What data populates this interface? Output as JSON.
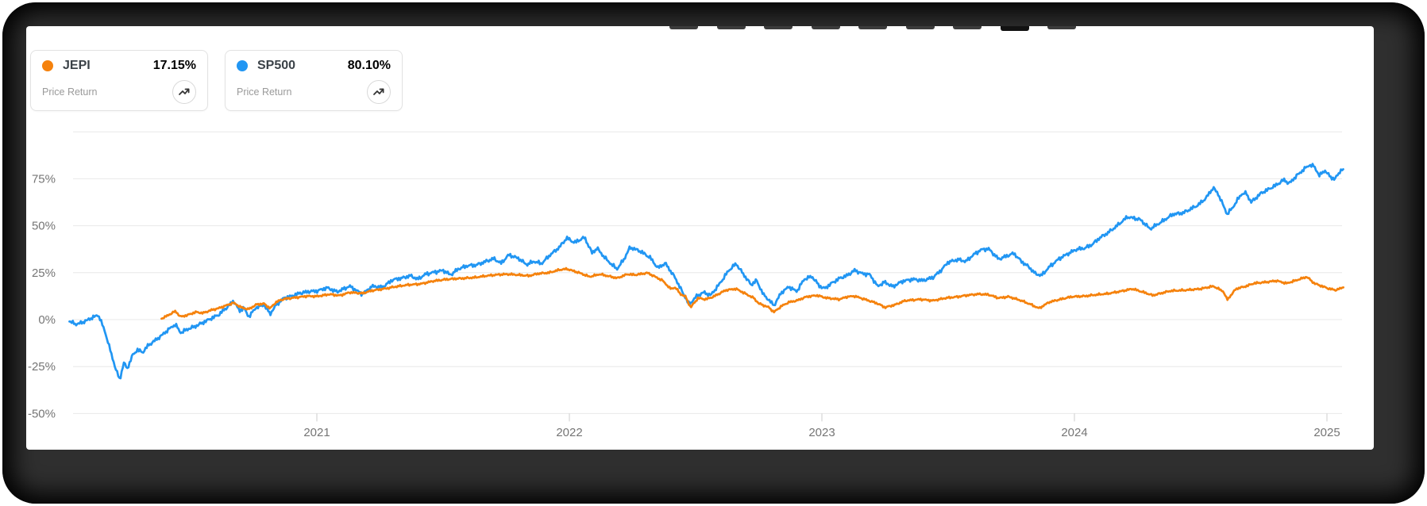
{
  "page": {
    "background": "#ffffff",
    "frame_color": "#2f2f2f",
    "panel_color": "#ffffff"
  },
  "toolbar": {
    "partial_tab_count": 9,
    "active_tab_index": 7
  },
  "legend": [
    {
      "ticker": "JEPI",
      "value": "17.15%",
      "metric": "Price Return",
      "color": "#f5820d",
      "icon": "trend-up-icon"
    },
    {
      "ticker": "SP500",
      "value": "80.10%",
      "metric": "Price Return",
      "color": "#2196f3",
      "icon": "trend-up-icon"
    }
  ],
  "chart_data": {
    "type": "line",
    "title": "",
    "xlabel": "",
    "ylabel": "",
    "grid": true,
    "legend_position": "top-left",
    "x_axis": {
      "labels": [
        "2021",
        "2022",
        "2023",
        "2024",
        "2025"
      ],
      "values": [
        1,
        2,
        3,
        4,
        5
      ],
      "unit": "years-since-2020",
      "range": [
        0.0,
        5.08
      ]
    },
    "y_axis": {
      "labels": [
        "75%",
        "50%",
        "25%",
        "0%",
        "-25%",
        "-50%"
      ],
      "values": [
        75,
        50,
        25,
        0,
        -25,
        -50
      ],
      "gridline_values": [
        100,
        75,
        50,
        25,
        0,
        -25,
        -50
      ],
      "unit": "percent",
      "ylim": [
        -50,
        100
      ]
    },
    "series": [
      {
        "name": "JEPI",
        "metric": "Price Return",
        "color": "#f5820d",
        "final_value_pct": 17.15,
        "points": [
          [
            0.385,
            0.5
          ],
          [
            0.4,
            1.5
          ],
          [
            0.42,
            3
          ],
          [
            0.44,
            4.5
          ],
          [
            0.46,
            1.5
          ],
          [
            0.49,
            2.5
          ],
          [
            0.52,
            4
          ],
          [
            0.55,
            3.5
          ],
          [
            0.58,
            5
          ],
          [
            0.61,
            6
          ],
          [
            0.64,
            7.5
          ],
          [
            0.67,
            9
          ],
          [
            0.7,
            6.5
          ],
          [
            0.73,
            5.5
          ],
          [
            0.76,
            8
          ],
          [
            0.79,
            8.5
          ],
          [
            0.815,
            6
          ],
          [
            0.84,
            9.5
          ],
          [
            0.87,
            11
          ],
          [
            0.9,
            11.5
          ],
          [
            0.93,
            12
          ],
          [
            0.96,
            12.5
          ],
          [
            1.0,
            12.4
          ],
          [
            1.05,
            13.5
          ],
          [
            1.09,
            12.8
          ],
          [
            1.13,
            14.5
          ],
          [
            1.18,
            14
          ],
          [
            1.22,
            15.5
          ],
          [
            1.27,
            16.5
          ],
          [
            1.31,
            17.5
          ],
          [
            1.36,
            18.5
          ],
          [
            1.41,
            19
          ],
          [
            1.46,
            20.5
          ],
          [
            1.51,
            21.4
          ],
          [
            1.55,
            21.8
          ],
          [
            1.59,
            22.1
          ],
          [
            1.63,
            22.5
          ],
          [
            1.67,
            23.3
          ],
          [
            1.72,
            24
          ],
          [
            1.76,
            24.2
          ],
          [
            1.8,
            23.8
          ],
          [
            1.84,
            23.3
          ],
          [
            1.875,
            24.5
          ],
          [
            1.92,
            25
          ],
          [
            1.96,
            26.5
          ],
          [
            1.99,
            27
          ],
          [
            2.04,
            24.9
          ],
          [
            2.08,
            22.8
          ],
          [
            2.12,
            24.2
          ],
          [
            2.19,
            22.1
          ],
          [
            2.23,
            24.2
          ],
          [
            2.26,
            23.8
          ],
          [
            2.31,
            24.9
          ],
          [
            2.34,
            22.8
          ],
          [
            2.37,
            20.7
          ],
          [
            2.4,
            16.4
          ],
          [
            2.42,
            17.1
          ],
          [
            2.44,
            13.6
          ],
          [
            2.46,
            12.2
          ],
          [
            2.48,
            6.5
          ],
          [
            2.51,
            11.5
          ],
          [
            2.54,
            10.8
          ],
          [
            2.57,
            12.2
          ],
          [
            2.62,
            15.7
          ],
          [
            2.66,
            16.4
          ],
          [
            2.7,
            13.6
          ],
          [
            2.73,
            11.5
          ],
          [
            2.75,
            8.6
          ],
          [
            2.79,
            6.5
          ],
          [
            2.81,
            4
          ],
          [
            2.84,
            7.2
          ],
          [
            2.87,
            9.3
          ],
          [
            2.9,
            10.1
          ],
          [
            2.94,
            12.2
          ],
          [
            2.98,
            12.9
          ],
          [
            3.02,
            11.5
          ],
          [
            3.07,
            10.8
          ],
          [
            3.1,
            12.2
          ],
          [
            3.13,
            12.5
          ],
          [
            3.17,
            10.8
          ],
          [
            3.22,
            8.6
          ],
          [
            3.25,
            6.5
          ],
          [
            3.29,
            7.9
          ],
          [
            3.33,
            10.1
          ],
          [
            3.39,
            10.8
          ],
          [
            3.44,
            10.1
          ],
          [
            3.49,
            11.5
          ],
          [
            3.54,
            12.2
          ],
          [
            3.57,
            12.9
          ],
          [
            3.62,
            13.6
          ],
          [
            3.66,
            13.3
          ],
          [
            3.7,
            11.5
          ],
          [
            3.74,
            12.2
          ],
          [
            3.79,
            10.1
          ],
          [
            3.83,
            7.9
          ],
          [
            3.86,
            6
          ],
          [
            3.9,
            9.3
          ],
          [
            3.95,
            11
          ],
          [
            3.99,
            12.2
          ],
          [
            4.04,
            12.5
          ],
          [
            4.09,
            13.3
          ],
          [
            4.13,
            13.8
          ],
          [
            4.18,
            15
          ],
          [
            4.23,
            16.4
          ],
          [
            4.28,
            14.3
          ],
          [
            4.31,
            12.9
          ],
          [
            4.38,
            15.3
          ],
          [
            4.44,
            15.7
          ],
          [
            4.5,
            16.4
          ],
          [
            4.55,
            17.8
          ],
          [
            4.59,
            15
          ],
          [
            4.605,
            10.5
          ],
          [
            4.64,
            16.4
          ],
          [
            4.68,
            17.8
          ],
          [
            4.71,
            19.3
          ],
          [
            4.76,
            20
          ],
          [
            4.8,
            20.7
          ],
          [
            4.84,
            19.3
          ],
          [
            4.88,
            21
          ],
          [
            4.92,
            22.8
          ],
          [
            4.95,
            19.3
          ],
          [
            4.98,
            17.8
          ],
          [
            5.01,
            16.4
          ],
          [
            5.035,
            15.7
          ],
          [
            5.065,
            17.15
          ]
        ]
      },
      {
        "name": "SP500",
        "metric": "Price Return",
        "color": "#2196f3",
        "final_value_pct": 80.1,
        "points": [
          [
            0.02,
            -1
          ],
          [
            0.05,
            -2.5
          ],
          [
            0.08,
            -1
          ],
          [
            0.11,
            1
          ],
          [
            0.135,
            2.5
          ],
          [
            0.16,
            -6
          ],
          [
            0.19,
            -20
          ],
          [
            0.205,
            -27
          ],
          [
            0.22,
            -32
          ],
          [
            0.235,
            -23
          ],
          [
            0.25,
            -26
          ],
          [
            0.27,
            -19
          ],
          [
            0.29,
            -16
          ],
          [
            0.31,
            -17.5
          ],
          [
            0.33,
            -14
          ],
          [
            0.36,
            -11
          ],
          [
            0.385,
            -8.5
          ],
          [
            0.41,
            -5.5
          ],
          [
            0.44,
            -2.5
          ],
          [
            0.46,
            -7
          ],
          [
            0.49,
            -5
          ],
          [
            0.52,
            -3.5
          ],
          [
            0.55,
            -1.5
          ],
          [
            0.58,
            0.5
          ],
          [
            0.61,
            2.5
          ],
          [
            0.64,
            6
          ],
          [
            0.67,
            10
          ],
          [
            0.695,
            4.5
          ],
          [
            0.71,
            6.5
          ],
          [
            0.73,
            1.5
          ],
          [
            0.76,
            6.5
          ],
          [
            0.79,
            8
          ],
          [
            0.815,
            3
          ],
          [
            0.84,
            8
          ],
          [
            0.87,
            11.5
          ],
          [
            0.9,
            12.5
          ],
          [
            0.93,
            14
          ],
          [
            0.97,
            15
          ],
          [
            1.0,
            15.2
          ],
          [
            1.04,
            17
          ],
          [
            1.08,
            14.8
          ],
          [
            1.13,
            17.8
          ],
          [
            1.18,
            13.6
          ],
          [
            1.22,
            17.8
          ],
          [
            1.26,
            17.2
          ],
          [
            1.3,
            21.2
          ],
          [
            1.34,
            22.2
          ],
          [
            1.37,
            23.4
          ],
          [
            1.4,
            21.5
          ],
          [
            1.43,
            24.2
          ],
          [
            1.47,
            25.4
          ],
          [
            1.5,
            26.2
          ],
          [
            1.53,
            23.8
          ],
          [
            1.56,
            27
          ],
          [
            1.6,
            28.8
          ],
          [
            1.63,
            29
          ],
          [
            1.66,
            30.5
          ],
          [
            1.7,
            32.5
          ],
          [
            1.73,
            30
          ],
          [
            1.76,
            34.5
          ],
          [
            1.8,
            32.5
          ],
          [
            1.83,
            29.3
          ],
          [
            1.86,
            31
          ],
          [
            1.89,
            29.8
          ],
          [
            1.92,
            34
          ],
          [
            1.96,
            38.5
          ],
          [
            1.99,
            43.5
          ],
          [
            2.02,
            41
          ],
          [
            2.06,
            43.8
          ],
          [
            2.09,
            35.5
          ],
          [
            2.11,
            38
          ],
          [
            2.14,
            33
          ],
          [
            2.17,
            29
          ],
          [
            2.19,
            27
          ],
          [
            2.22,
            33
          ],
          [
            2.24,
            38.5
          ],
          [
            2.28,
            36.5
          ],
          [
            2.32,
            33
          ],
          [
            2.35,
            27.5
          ],
          [
            2.38,
            30
          ],
          [
            2.42,
            22
          ],
          [
            2.45,
            14
          ],
          [
            2.475,
            8
          ],
          [
            2.5,
            12
          ],
          [
            2.53,
            14.5
          ],
          [
            2.56,
            13
          ],
          [
            2.6,
            20
          ],
          [
            2.63,
            26
          ],
          [
            2.66,
            29.8
          ],
          [
            2.69,
            24
          ],
          [
            2.72,
            18.5
          ],
          [
            2.74,
            21
          ],
          [
            2.77,
            13
          ],
          [
            2.79,
            10.5
          ],
          [
            2.81,
            7.5
          ],
          [
            2.84,
            14.5
          ],
          [
            2.87,
            17.5
          ],
          [
            2.9,
            15
          ],
          [
            2.93,
            21.5
          ],
          [
            2.96,
            23
          ],
          [
            2.99,
            18
          ],
          [
            3.01,
            16.5
          ],
          [
            3.04,
            19.5
          ],
          [
            3.07,
            22
          ],
          [
            3.1,
            23.5
          ],
          [
            3.13,
            26.3
          ],
          [
            3.16,
            24.5
          ],
          [
            3.19,
            24
          ],
          [
            3.22,
            17.8
          ],
          [
            3.25,
            20
          ],
          [
            3.28,
            17.5
          ],
          [
            3.32,
            20.5
          ],
          [
            3.36,
            21.5
          ],
          [
            3.4,
            20.8
          ],
          [
            3.44,
            22.5
          ],
          [
            3.47,
            26
          ],
          [
            3.5,
            30.6
          ],
          [
            3.54,
            32
          ],
          [
            3.57,
            31
          ],
          [
            3.6,
            34.5
          ],
          [
            3.63,
            37.2
          ],
          [
            3.66,
            37.7
          ],
          [
            3.7,
            32.2
          ],
          [
            3.73,
            33.8
          ],
          [
            3.76,
            35.3
          ],
          [
            3.79,
            31
          ],
          [
            3.82,
            28
          ],
          [
            3.845,
            24.5
          ],
          [
            3.87,
            23.5
          ],
          [
            3.9,
            28
          ],
          [
            3.94,
            32.5
          ],
          [
            3.98,
            35.5
          ],
          [
            4.01,
            37.5
          ],
          [
            4.04,
            38
          ],
          [
            4.07,
            40
          ],
          [
            4.1,
            43.5
          ],
          [
            4.13,
            46
          ],
          [
            4.16,
            49
          ],
          [
            4.21,
            54.7
          ],
          [
            4.26,
            53.3
          ],
          [
            4.3,
            48.3
          ],
          [
            4.35,
            52.5
          ],
          [
            4.39,
            56.1
          ],
          [
            4.43,
            56.8
          ],
          [
            4.46,
            58.9
          ],
          [
            4.49,
            61
          ],
          [
            4.52,
            64.6
          ],
          [
            4.55,
            70.3
          ],
          [
            4.57,
            66.7
          ],
          [
            4.605,
            56.1
          ],
          [
            4.63,
            60.3
          ],
          [
            4.66,
            66.7
          ],
          [
            4.68,
            67.4
          ],
          [
            4.7,
            62.5
          ],
          [
            4.74,
            67.4
          ],
          [
            4.77,
            69.5
          ],
          [
            4.8,
            71.7
          ],
          [
            4.83,
            74.5
          ],
          [
            4.85,
            72.4
          ],
          [
            4.88,
            76.6
          ],
          [
            4.91,
            80.2
          ],
          [
            4.93,
            82.3
          ],
          [
            4.95,
            81.6
          ],
          [
            4.97,
            76.6
          ],
          [
            4.99,
            79.5
          ],
          [
            5.01,
            76.6
          ],
          [
            5.03,
            74.5
          ],
          [
            5.05,
            78.8
          ],
          [
            5.065,
            80.1
          ]
        ]
      }
    ],
    "style": {
      "gridline_color": "#e8e8e8",
      "axis_label_color": "#757575",
      "tick_color": "#cccccc"
    }
  }
}
